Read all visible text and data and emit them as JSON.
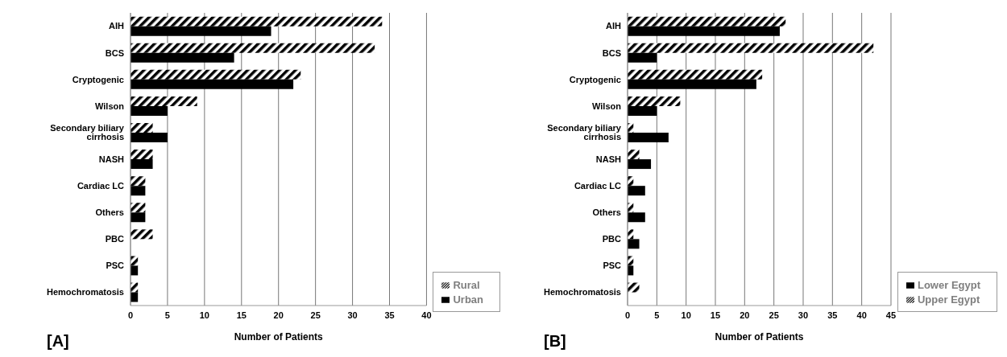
{
  "chart_data": [
    {
      "type": "bar",
      "orientation": "horizontal",
      "xlabel": "Number of Patients",
      "annotations": [
        "[A]"
      ],
      "categories": [
        "AIH",
        "BCS",
        "Cryptogenic",
        "Wilson",
        "Secondary biliary cirrhosis",
        "NASH",
        "Cardiac LC",
        "Others",
        "PBC",
        "PSC",
        "Hemochromatosis"
      ],
      "series": [
        {
          "name": "Rural",
          "color": "#000000",
          "values": [
            34,
            33,
            23,
            9,
            3,
            3,
            2,
            2,
            3,
            1,
            1
          ]
        },
        {
          "name": "Urban",
          "color": "#000000",
          "values": [
            19,
            14,
            22,
            5,
            5,
            3,
            2,
            2,
            0,
            1,
            1
          ]
        }
      ],
      "xlim": [
        0,
        40
      ],
      "xticks": [
        0,
        5,
        10,
        15,
        20,
        25,
        30,
        35,
        40
      ],
      "grid": "x",
      "legend": "bottom right"
    },
    {
      "type": "bar",
      "orientation": "horizontal",
      "xlabel": "Number of Patients",
      "annotations": [
        "[B]"
      ],
      "categories": [
        "AIH",
        "BCS",
        "Cryptogenic",
        "Wilson",
        "Secondary biliary cirrhosis",
        "NASH",
        "Cardiac LC",
        "Others",
        "PBC",
        "PSC",
        "Hemochromatosis"
      ],
      "series": [
        {
          "name": "Upper Egypt",
          "color": "#000000",
          "values": [
            27,
            42,
            23,
            9,
            1,
            2,
            1,
            1,
            1,
            1,
            2
          ]
        },
        {
          "name": "Lower Egypt",
          "color": "#000000",
          "values": [
            26,
            5,
            22,
            5,
            7,
            4,
            3,
            3,
            2,
            1,
            0
          ]
        }
      ],
      "xlim": [
        0,
        45
      ],
      "xticks": [
        0,
        5,
        10,
        15,
        20,
        25,
        30,
        35,
        40,
        45
      ],
      "grid": "x",
      "legend": "bottom right"
    }
  ]
}
